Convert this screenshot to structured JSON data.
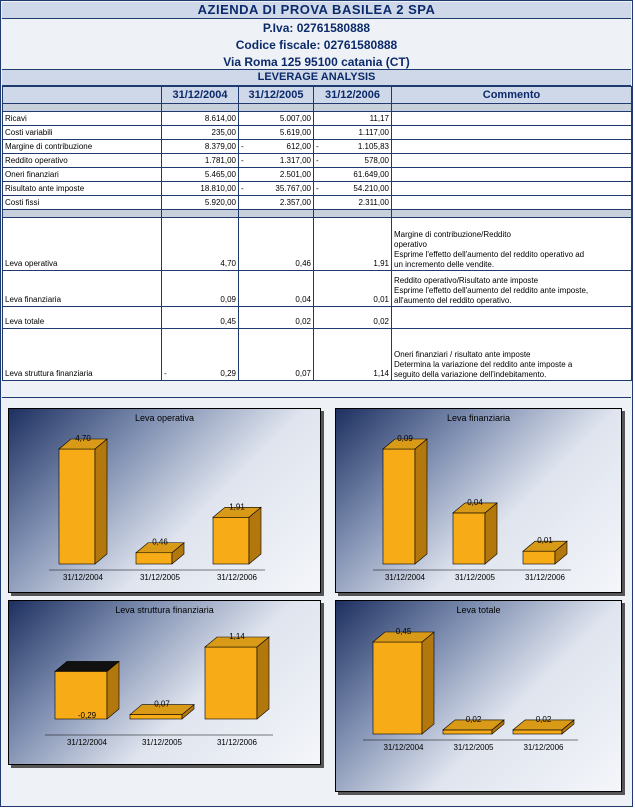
{
  "header": {
    "company": "AZIENDA DI PROVA BASILEA 2 SPA",
    "piva": "P.Iva: 02761580888",
    "codice_fiscale": "Codice fiscale: 02761580888",
    "address": "Via Roma 125 95100 catania (CT)",
    "section": "LEVERAGE ANALYSIS"
  },
  "columns": {
    "y1": "31/12/2004",
    "y2": "31/12/2005",
    "y3": "31/12/2006",
    "comment": "Commento"
  },
  "rows": [
    {
      "label": "Ricavi",
      "v1": "8.614,00",
      "v2": "5.007,00",
      "v3": "11,17",
      "n1": "",
      "n2": "",
      "n3": ""
    },
    {
      "label": "Costi variabili",
      "v1": "235,00",
      "v2": "5.619,00",
      "v3": "1.117,00",
      "n1": "",
      "n2": "",
      "n3": ""
    },
    {
      "label": "Margine di contribuzione",
      "v1": "8.379,00",
      "v2": "612,00",
      "v3": "1.105,83",
      "n1": "",
      "n2": "-",
      "n3": "-"
    },
    {
      "label": "Reddito operativo",
      "v1": "1.781,00",
      "v2": "1.317,00",
      "v3": "578,00",
      "n1": "",
      "n2": "-",
      "n3": "-"
    },
    {
      "label": "Oneri finanziari",
      "v1": "5.465,00",
      "v2": "2.501,00",
      "v3": "61.649,00",
      "n1": "",
      "n2": "",
      "n3": ""
    },
    {
      "label": "Risultato ante imposte",
      "v1": "18.810,00",
      "v2": "35.767,00",
      "v3": "54.210,00",
      "n1": "",
      "n2": "-",
      "n3": "-"
    },
    {
      "label": "Costi fissi",
      "v1": "5.920,00",
      "v2": "2.357,00",
      "v3": "2.311,00",
      "n1": "",
      "n2": "",
      "n3": ""
    }
  ],
  "leverage": [
    {
      "label": "Leva operativa",
      "v1": "4,70",
      "v2": "0,46",
      "v3": "1,91",
      "n1": "",
      "comment": [
        "Margine di contribuzione/Reddito",
        "operativo",
        "Esprime l'effetto dell'aumento del reddito operativo ad",
        "un incremento delle vendite."
      ]
    },
    {
      "label": "Leva finanziaria",
      "v1": "0,09",
      "v2": "0,04",
      "v3": "0,01",
      "n1": "",
      "comment": [
        "Reddito operativo/Risultato ante imposte",
        "Esprime l'effetto dell'aumento del reddito ante imposte,",
        "all'aumento del reddito operativo."
      ]
    },
    {
      "label": "Leva totale",
      "v1": "0,45",
      "v2": "0,02",
      "v3": "0,02",
      "n1": "",
      "comment": []
    },
    {
      "label": "Leva struttura finanziaria",
      "v1": "0,29",
      "v2": "0,07",
      "v3": "1,14",
      "n1": "-",
      "comment": [
        "Oneri finanziari / risultato ante imposte",
        "Determina la variazione del reddito ante imposte a",
        "seguito della variazione dell'indebitamento."
      ]
    }
  ],
  "chart_data": [
    {
      "type": "bar",
      "title": "Leva operativa",
      "categories": [
        "31/12/2004",
        "31/12/2005",
        "31/12/2006"
      ],
      "values": [
        4.7,
        0.46,
        1.91
      ],
      "labels": [
        "4,70",
        "0,46",
        "1,91"
      ]
    },
    {
      "type": "bar",
      "title": "Leva finanziaria",
      "categories": [
        "31/12/2004",
        "31/12/2005",
        "31/12/2006"
      ],
      "values": [
        0.09,
        0.04,
        0.01
      ],
      "labels": [
        "0,09",
        "0,04",
        "0,01"
      ]
    },
    {
      "type": "bar",
      "title": "Leva struttura finanziaria",
      "categories": [
        "31/12/2004",
        "31/12/2005",
        "31/12/2006"
      ],
      "values": [
        -0.29,
        0.07,
        1.14
      ],
      "labels": [
        "-0,29",
        "0,07",
        "1,14"
      ]
    },
    {
      "type": "bar",
      "title": "Leva totale",
      "categories": [
        "31/12/2004",
        "31/12/2005",
        "31/12/2006"
      ],
      "values": [
        0.45,
        0.02,
        0.02
      ],
      "labels": [
        "0,45",
        "0,02",
        "0,02"
      ]
    }
  ],
  "colors": {
    "bar_front": "#f7ab16",
    "bar_side": "#b3780d",
    "bar_top": "#d99a18",
    "neg_top": "#111111",
    "header_bg": "#cfd8e8",
    "title_text": "#0b2a6b"
  }
}
